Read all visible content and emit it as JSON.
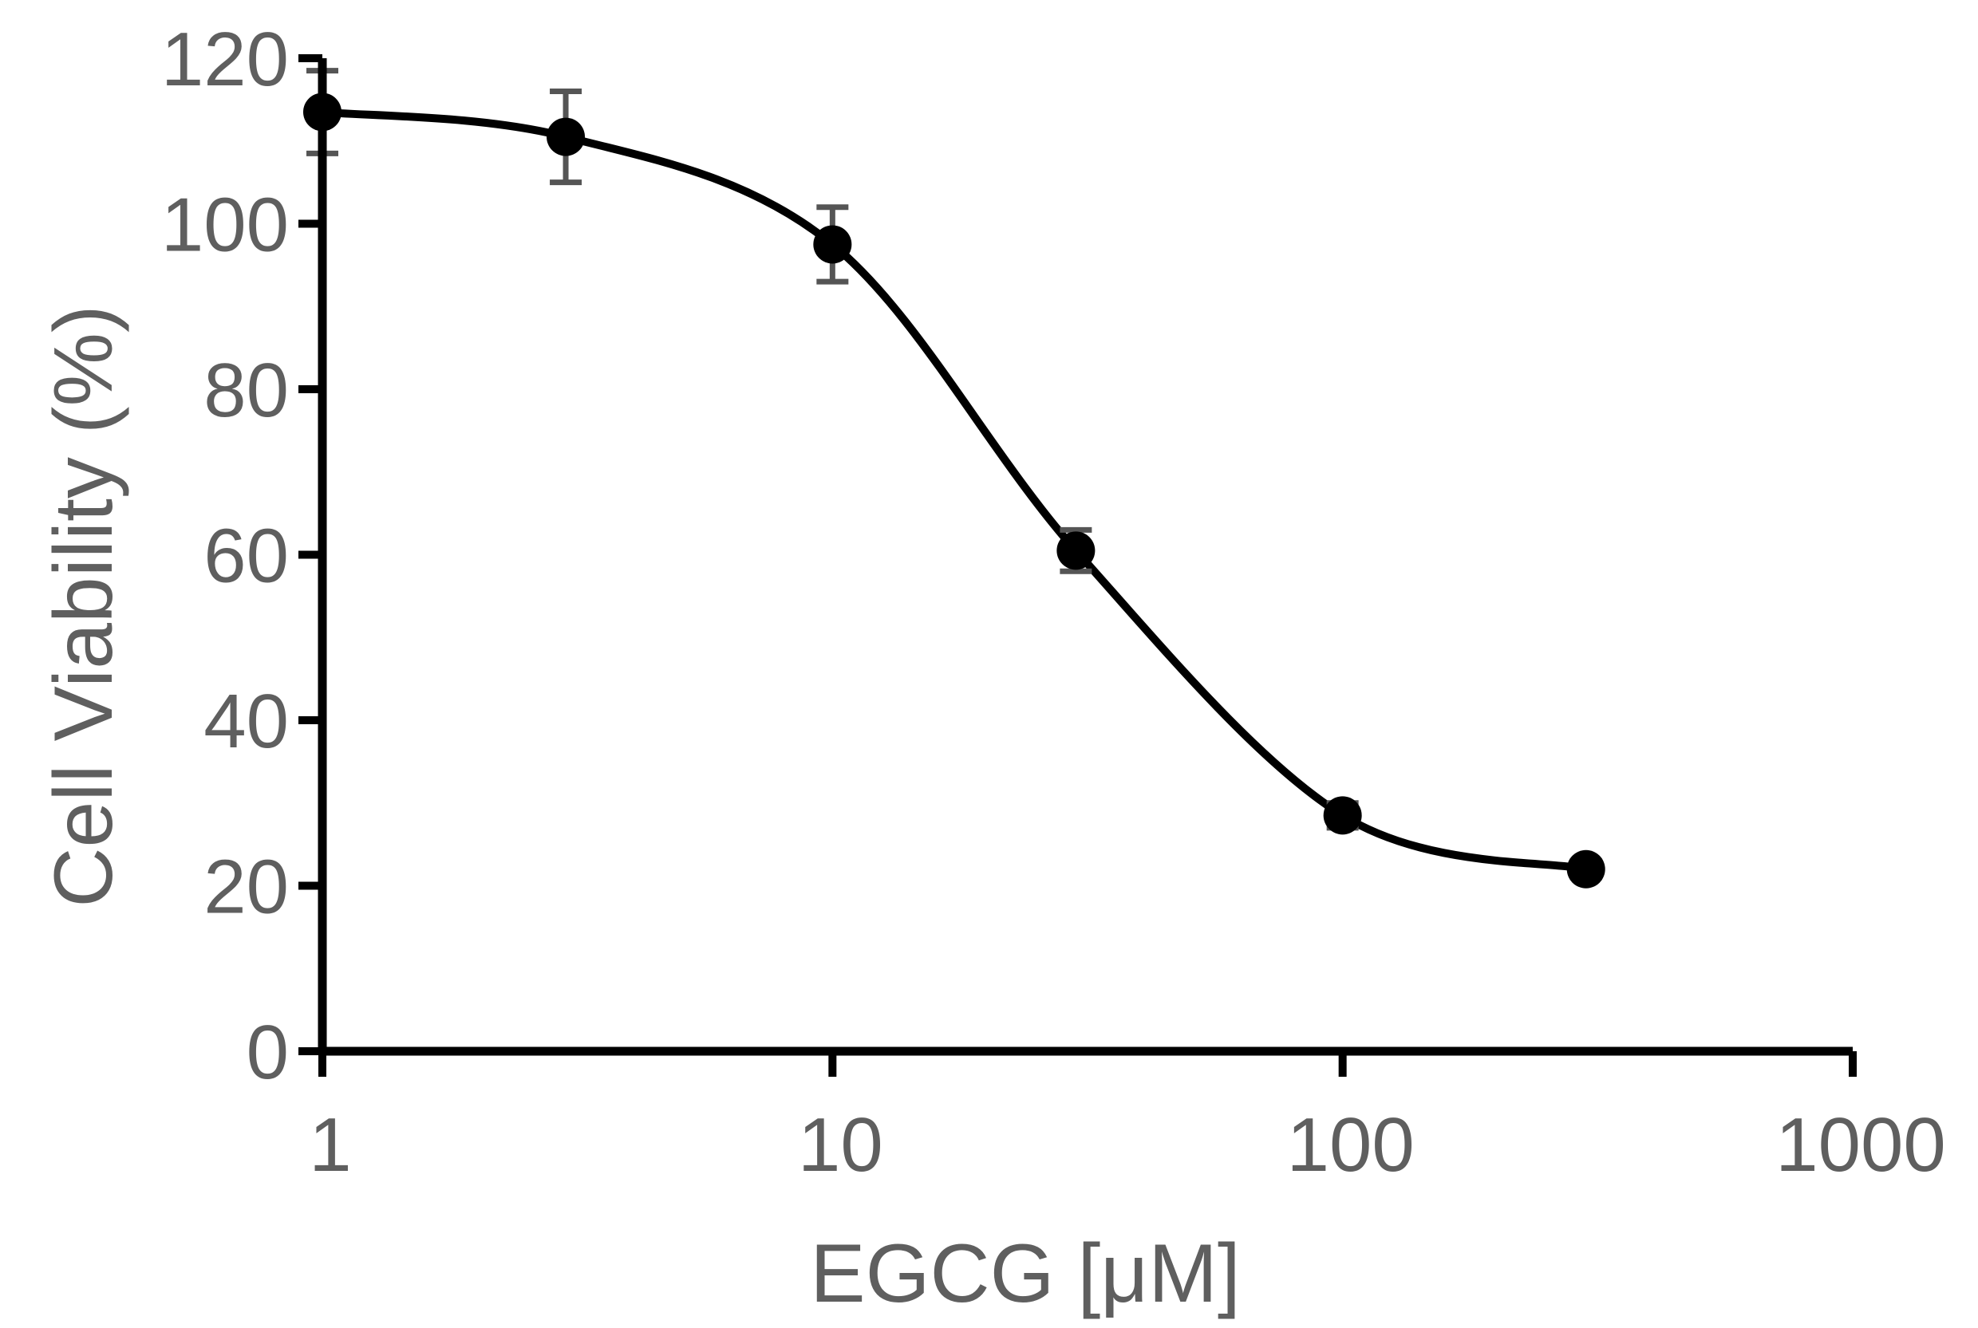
{
  "chart_data": {
    "type": "scatter",
    "xlabel": "EGCG [μM]",
    "ylabel": "Cell Viability (%)",
    "x_scale": "log",
    "xlim": [
      1,
      1000
    ],
    "ylim": [
      0,
      120
    ],
    "x_ticks": [
      1,
      10,
      100,
      1000
    ],
    "x_tick_labels": [
      "1",
      "10",
      "100",
      "1000"
    ],
    "y_ticks": [
      0,
      20,
      40,
      60,
      80,
      100,
      120
    ],
    "y_tick_labels": [
      "0",
      "20",
      "40",
      "60",
      "80",
      "100",
      "120"
    ],
    "grid": false,
    "series": [
      {
        "x": [
          1,
          3,
          10,
          30,
          100,
          300
        ],
        "y": [
          113.5,
          110.5,
          97.5,
          60.5,
          28.5,
          22
        ],
        "error": [
          5,
          5.5,
          4.5,
          2.5,
          1.5,
          1
        ]
      }
    ],
    "fit_curve": "sigmoidal dose-response",
    "colors": {
      "series": "#000000",
      "error_bars": "#555555",
      "text": "#5f5f5f"
    }
  }
}
